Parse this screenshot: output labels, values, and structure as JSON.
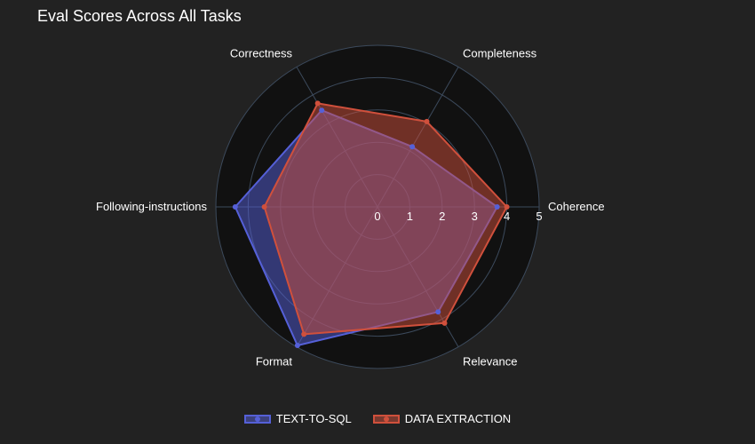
{
  "chart_data": {
    "type": "radar",
    "title": "Eval Scores Across All Tasks",
    "axes": [
      "Coherence",
      "Completeness",
      "Correctness",
      "Following-instructions",
      "Format",
      "Relevance"
    ],
    "radial_range": [
      0,
      5
    ],
    "radial_ticks": [
      "0",
      "1",
      "2",
      "3",
      "4",
      "5"
    ],
    "series": [
      {
        "name": "TEXT-TO-SQL",
        "values": [
          3.7,
          2.15,
          3.45,
          4.4,
          4.95,
          3.75
        ],
        "color": "#5560d8"
      },
      {
        "name": "DATA EXTRACTION",
        "values": [
          4.0,
          3.05,
          3.7,
          3.5,
          4.55,
          4.15
        ],
        "color": "#d0503c"
      }
    ],
    "legend_placement": "bottom-center",
    "grid": true
  }
}
